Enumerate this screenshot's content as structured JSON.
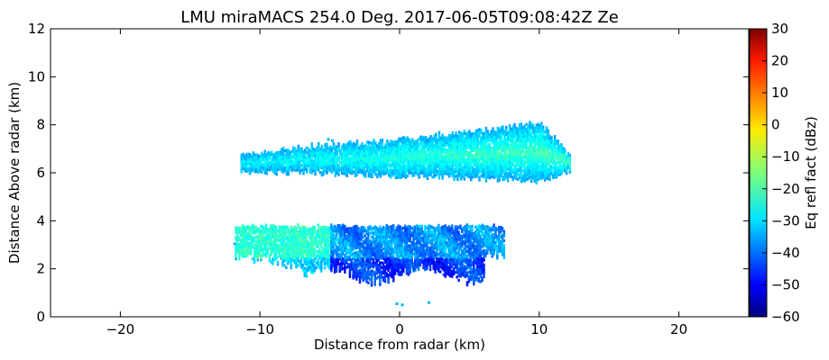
{
  "chart_data": {
    "type": "heatmap",
    "title": "LMU miraMACS 254.0 Deg. 2017-06-05T09:08:42Z  Ze",
    "xlabel": "Distance from radar (km)",
    "ylabel": "Distance Above radar  (km)",
    "xlim": [
      -25,
      25
    ],
    "ylim": [
      0,
      12
    ],
    "xticks": [
      -20,
      -10,
      0,
      10,
      20
    ],
    "yticks": [
      0,
      2,
      4,
      6,
      8,
      10,
      12
    ],
    "xtick_labels": [
      "−20",
      "−10",
      "0",
      "10",
      "20"
    ],
    "ytick_labels": [
      "0",
      "2",
      "4",
      "6",
      "8",
      "10",
      "12"
    ],
    "grid": false,
    "colorbar": {
      "label": "Eq refl fact (dBz)",
      "colormap": "jet",
      "range": [
        -60,
        30
      ],
      "ticks": [
        -60,
        -50,
        -40,
        -30,
        -20,
        -10,
        0,
        10,
        20,
        30
      ],
      "tick_labels": [
        "−60",
        "−50",
        "−40",
        "−30",
        "−20",
        "−10",
        "0",
        "10",
        "20",
        "30"
      ]
    },
    "regions": [
      {
        "name": "upper cloud layer",
        "x_range": [
          -11.5,
          12.3
        ],
        "y_range": [
          5.3,
          8.3
        ],
        "typical_dbz": [
          -30,
          -15
        ]
      },
      {
        "name": "lower cloud layer",
        "x_range": [
          -11.8,
          7.5
        ],
        "y_range": [
          1.6,
          3.8
        ],
        "typical_dbz": [
          -45,
          -20
        ]
      }
    ]
  }
}
